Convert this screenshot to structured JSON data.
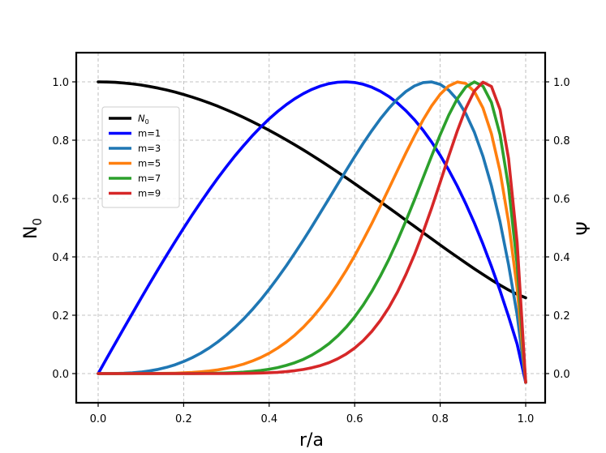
{
  "chart_data": {
    "type": "line",
    "title": "",
    "xlabel": "r/a",
    "ylabel_left": "N",
    "ylabel_left_sub": "0",
    "ylabel_right": "Ψ",
    "xlim": [
      -0.05,
      1.05
    ],
    "ylim": [
      -0.1,
      1.1
    ],
    "x_ticks": [
      0.0,
      0.2,
      0.4,
      0.6,
      0.8,
      1.0
    ],
    "x_tick_labels": [
      "0.0",
      "0.2",
      "0.4",
      "0.6",
      "0.8",
      "1.0"
    ],
    "y_ticks": [
      0.0,
      0.2,
      0.4,
      0.6,
      0.8,
      1.0
    ],
    "y_tick_labels": [
      "0.0",
      "0.2",
      "0.4",
      "0.6",
      "0.8",
      "1.0"
    ],
    "grid": true,
    "legend_position": "upper-left",
    "series": [
      {
        "name": "N",
        "name_sub": "0",
        "color": "#000000",
        "curve": "n0"
      },
      {
        "name": "m=1",
        "color": "#0000ff",
        "curve": "psi",
        "m": 1
      },
      {
        "name": "m=3",
        "color": "#1f77b4",
        "curve": "psi",
        "m": 3
      },
      {
        "name": "m=5",
        "color": "#ff7f0e",
        "curve": "psi",
        "m": 5
      },
      {
        "name": "m=7",
        "color": "#2ca02c",
        "curve": "psi",
        "m": 7
      },
      {
        "name": "m=9",
        "color": "#d62728",
        "curve": "psi",
        "m": 9
      }
    ]
  }
}
